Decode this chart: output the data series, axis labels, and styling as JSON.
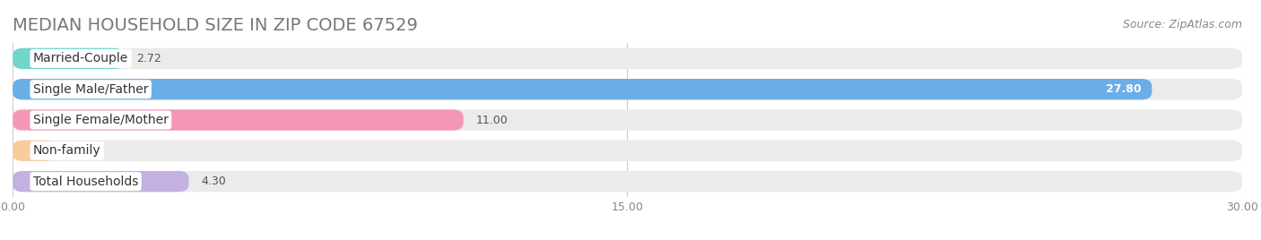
{
  "title": "MEDIAN HOUSEHOLD SIZE IN ZIP CODE 67529",
  "source": "Source: ZipAtlas.com",
  "categories": [
    "Married-Couple",
    "Single Male/Father",
    "Single Female/Mother",
    "Non-family",
    "Total Households"
  ],
  "values": [
    2.72,
    27.8,
    11.0,
    1.05,
    4.3
  ],
  "bar_colors": [
    "#72d4cb",
    "#6aaee8",
    "#f598b5",
    "#f9cc9d",
    "#c3b1e1"
  ],
  "label_colors": [
    "#444444",
    "#ffffff",
    "#444444",
    "#444444",
    "#444444"
  ],
  "xlim": [
    0,
    30.0
  ],
  "xticks": [
    0.0,
    15.0,
    30.0
  ],
  "background_color": "#ffffff",
  "bar_bg_color": "#ebebeb",
  "title_fontsize": 14,
  "source_fontsize": 9,
  "tick_fontsize": 9,
  "cat_fontsize": 10,
  "val_fontsize": 9,
  "bar_height": 0.68
}
